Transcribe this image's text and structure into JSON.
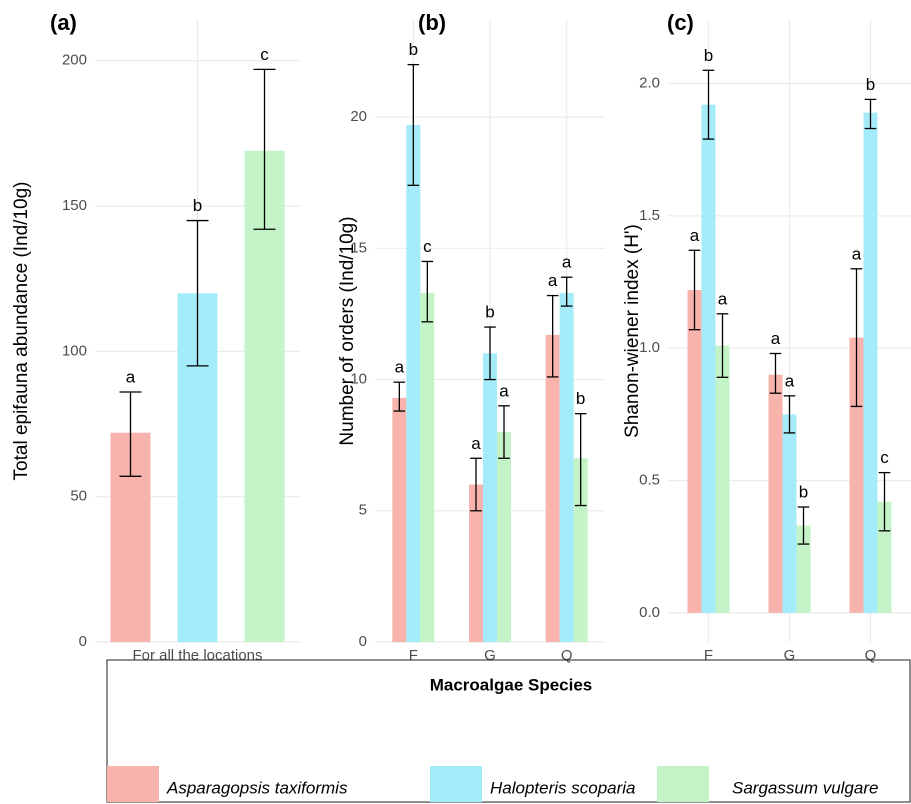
{
  "chart_data": [
    {
      "type": "bar",
      "tag": "(a)",
      "y_label": "Total epifauna abundance (Ind/10g)",
      "categories": [
        "For all the locations"
      ],
      "ylim": [
        0,
        214
      ],
      "yticks": [
        0,
        50,
        100,
        150,
        200
      ],
      "grid": true,
      "legend_title": "Macroalgae Species",
      "legend_position": "bottom",
      "series": [
        {
          "name": "Asparagopsis taxiformis",
          "color": "#f9b3ad",
          "values": [
            72
          ],
          "error_low": [
            57
          ],
          "error_high": [
            86
          ],
          "letters": [
            "a"
          ]
        },
        {
          "name": "Halopteris scoparia",
          "color": "#a4ecf9",
          "values": [
            120
          ],
          "error_low": [
            95
          ],
          "error_high": [
            145
          ],
          "letters": [
            "b"
          ]
        },
        {
          "name": "Sargassum vulgare",
          "color": "#c3f3c6",
          "values": [
            169
          ],
          "error_low": [
            142
          ],
          "error_high": [
            197
          ],
          "letters": [
            "c"
          ]
        }
      ]
    },
    {
      "type": "bar",
      "tag": "(b)",
      "y_label": "Number of orders (Ind/10g)",
      "categories": [
        "F",
        "G",
        "Q"
      ],
      "ylim": [
        0,
        23.7
      ],
      "yticks": [
        0,
        5,
        10,
        15,
        20
      ],
      "grid": true,
      "series": [
        {
          "color": "#f9b3ad",
          "values": [
            9.3,
            6,
            11.7
          ],
          "error_low": [
            8.8,
            5,
            10.1
          ],
          "error_high": [
            9.9,
            7,
            13.2
          ],
          "letters": [
            "a",
            "a",
            "a"
          ]
        },
        {
          "color": "#a4ecf9",
          "values": [
            19.7,
            11,
            13.3
          ],
          "error_low": [
            17.4,
            10,
            12.8
          ],
          "error_high": [
            22,
            12,
            13.9
          ],
          "letters": [
            "b",
            "b",
            "a"
          ]
        },
        {
          "color": "#c3f3c6",
          "values": [
            13.3,
            8,
            7
          ],
          "error_low": [
            12.2,
            7,
            5.2
          ],
          "error_high": [
            14.5,
            9,
            8.7
          ],
          "letters": [
            "c",
            "a",
            "b"
          ]
        }
      ]
    },
    {
      "type": "bar",
      "tag": "(c)",
      "y_label": "Shanon-wiener index (H')",
      "categories": [
        "F",
        "G",
        "Q"
      ],
      "ylim": [
        -0.11,
        2.24
      ],
      "yticks": [
        {
          "value": 0,
          "label": "0.0"
        },
        0.5,
        {
          "value": 1,
          "label": "1.0"
        },
        1.5,
        {
          "value": 2,
          "label": "2.0"
        }
      ],
      "grid": true,
      "series": [
        {
          "color": "#f9b3ad",
          "values": [
            1.22,
            0.9,
            1.04
          ],
          "error_low": [
            1.07,
            0.83,
            0.78
          ],
          "error_high": [
            1.37,
            0.98,
            1.3
          ],
          "letters": [
            "a",
            "a",
            "a"
          ]
        },
        {
          "color": "#a4ecf9",
          "values": [
            1.92,
            0.75,
            1.89
          ],
          "error_low": [
            1.79,
            0.68,
            1.83
          ],
          "error_high": [
            2.05,
            0.82,
            1.94
          ],
          "letters": [
            "b",
            "a",
            "b"
          ]
        },
        {
          "color": "#c3f3c6",
          "values": [
            1.01,
            0.33,
            0.42
          ],
          "error_low": [
            0.89,
            0.26,
            0.31
          ],
          "error_high": [
            1.13,
            0.4,
            0.53
          ],
          "letters": [
            "a",
            "b",
            "c"
          ]
        }
      ]
    }
  ]
}
